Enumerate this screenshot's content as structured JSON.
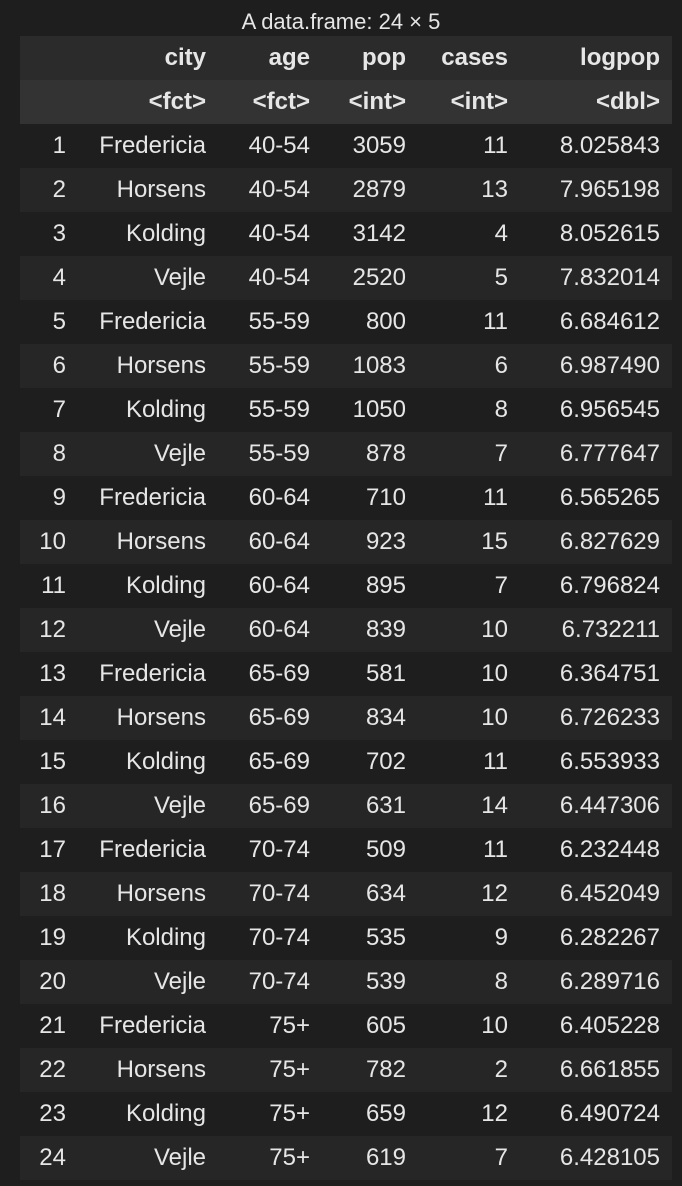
{
  "caption": "A data.frame: 24 × 5",
  "columns": [
    {
      "name": "",
      "type": ""
    },
    {
      "name": "city",
      "type": "<fct>"
    },
    {
      "name": "age",
      "type": "<fct>"
    },
    {
      "name": "pop",
      "type": "<int>"
    },
    {
      "name": "cases",
      "type": "<int>"
    },
    {
      "name": "logpop",
      "type": "<dbl>"
    }
  ],
  "rows": [
    [
      "1",
      "Fredericia",
      "40-54",
      "3059",
      "11",
      "8.025843"
    ],
    [
      "2",
      "Horsens",
      "40-54",
      "2879",
      "13",
      "7.965198"
    ],
    [
      "3",
      "Kolding",
      "40-54",
      "3142",
      "4",
      "8.052615"
    ],
    [
      "4",
      "Vejle",
      "40-54",
      "2520",
      "5",
      "7.832014"
    ],
    [
      "5",
      "Fredericia",
      "55-59",
      "800",
      "11",
      "6.684612"
    ],
    [
      "6",
      "Horsens",
      "55-59",
      "1083",
      "6",
      "6.987490"
    ],
    [
      "7",
      "Kolding",
      "55-59",
      "1050",
      "8",
      "6.956545"
    ],
    [
      "8",
      "Vejle",
      "55-59",
      "878",
      "7",
      "6.777647"
    ],
    [
      "9",
      "Fredericia",
      "60-64",
      "710",
      "11",
      "6.565265"
    ],
    [
      "10",
      "Horsens",
      "60-64",
      "923",
      "15",
      "6.827629"
    ],
    [
      "11",
      "Kolding",
      "60-64",
      "895",
      "7",
      "6.796824"
    ],
    [
      "12",
      "Vejle",
      "60-64",
      "839",
      "10",
      "6.732211"
    ],
    [
      "13",
      "Fredericia",
      "65-69",
      "581",
      "10",
      "6.364751"
    ],
    [
      "14",
      "Horsens",
      "65-69",
      "834",
      "10",
      "6.726233"
    ],
    [
      "15",
      "Kolding",
      "65-69",
      "702",
      "11",
      "6.553933"
    ],
    [
      "16",
      "Vejle",
      "65-69",
      "631",
      "14",
      "6.447306"
    ],
    [
      "17",
      "Fredericia",
      "70-74",
      "509",
      "11",
      "6.232448"
    ],
    [
      "18",
      "Horsens",
      "70-74",
      "634",
      "12",
      "6.452049"
    ],
    [
      "19",
      "Kolding",
      "70-74",
      "535",
      "9",
      "6.282267"
    ],
    [
      "20",
      "Vejle",
      "70-74",
      "539",
      "8",
      "6.289716"
    ],
    [
      "21",
      "Fredericia",
      "75+",
      "605",
      "10",
      "6.405228"
    ],
    [
      "22",
      "Horsens",
      "75+",
      "782",
      "2",
      "6.661855"
    ],
    [
      "23",
      "Kolding",
      "75+",
      "659",
      "12",
      "6.490724"
    ],
    [
      "24",
      "Vejle",
      "75+",
      "619",
      "7",
      "6.428105"
    ]
  ]
}
